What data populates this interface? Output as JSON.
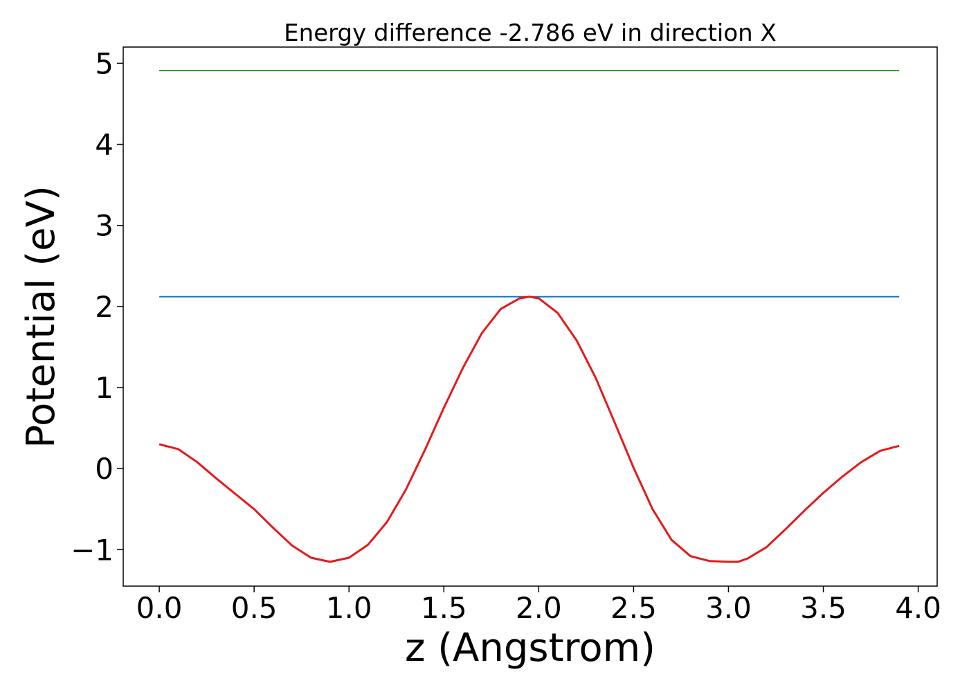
{
  "chart_data": {
    "type": "line",
    "title": "Energy difference -2.786 eV in direction X",
    "xlabel": "z (Angstrom)",
    "ylabel": "Potential (eV)",
    "xlim": [
      -0.19,
      4.1
    ],
    "ylim": [
      -1.45,
      5.2
    ],
    "xticks": [
      0.0,
      0.5,
      1.0,
      1.5,
      2.0,
      2.5,
      3.0,
      3.5,
      4.0
    ],
    "xtick_labels": [
      "0.0",
      "0.5",
      "1.0",
      "1.5",
      "2.0",
      "2.5",
      "3.0",
      "3.5",
      "4.0"
    ],
    "yticks": [
      -1,
      0,
      1,
      2,
      3,
      4,
      5
    ],
    "ytick_labels": [
      "−1",
      "0",
      "1",
      "2",
      "3",
      "4",
      "5"
    ],
    "grid": false,
    "series": [
      {
        "color": "#2ca02c",
        "x": [
          0.0,
          3.9
        ],
        "y": [
          4.91,
          4.91
        ]
      },
      {
        "color": "#1f77b4",
        "x": [
          0.0,
          3.9
        ],
        "y": [
          2.12,
          2.12
        ]
      },
      {
        "color": "#e31a1c",
        "x": [
          0.0,
          0.1,
          0.2,
          0.3,
          0.4,
          0.5,
          0.6,
          0.7,
          0.8,
          0.9,
          1.0,
          1.1,
          1.2,
          1.3,
          1.4,
          1.5,
          1.6,
          1.7,
          1.8,
          1.9,
          1.95,
          2.0,
          2.1,
          2.2,
          2.3,
          2.4,
          2.5,
          2.6,
          2.7,
          2.8,
          2.9,
          3.0,
          3.05,
          3.1,
          3.2,
          3.3,
          3.4,
          3.5,
          3.6,
          3.7,
          3.8,
          3.9
        ],
        "y": [
          0.3,
          0.24,
          0.08,
          -0.12,
          -0.31,
          -0.5,
          -0.73,
          -0.95,
          -1.1,
          -1.15,
          -1.1,
          -0.94,
          -0.66,
          -0.26,
          0.23,
          0.75,
          1.24,
          1.67,
          1.97,
          2.1,
          2.12,
          2.1,
          1.92,
          1.58,
          1.12,
          0.57,
          0.01,
          -0.5,
          -0.88,
          -1.08,
          -1.14,
          -1.15,
          -1.15,
          -1.11,
          -0.97,
          -0.75,
          -0.52,
          -0.3,
          -0.1,
          0.08,
          0.22,
          0.28
        ]
      }
    ]
  }
}
